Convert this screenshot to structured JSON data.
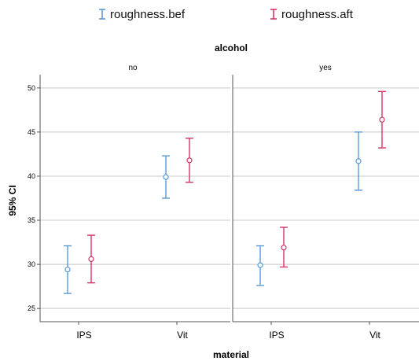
{
  "chart_data": {
    "type": "errorbar",
    "facet_title": "alcohol",
    "panels": [
      "no",
      "yes"
    ],
    "categories": [
      "IPS",
      "Vit"
    ],
    "xlabel": "material",
    "ylabel": "95% CI",
    "ylim": [
      23.5,
      51.5
    ],
    "yticks": [
      25,
      30,
      35,
      40,
      45,
      50
    ],
    "grid": true,
    "legend_position": "top",
    "series": [
      {
        "name": "roughness.bef",
        "color": "#5b9bd5",
        "points": [
          {
            "panel": "no",
            "category": "IPS",
            "mean": 29.4,
            "low": 26.7,
            "high": 32.1
          },
          {
            "panel": "no",
            "category": "Vit",
            "mean": 39.9,
            "low": 37.5,
            "high": 42.3
          },
          {
            "panel": "yes",
            "category": "IPS",
            "mean": 29.9,
            "low": 27.6,
            "high": 32.1
          },
          {
            "panel": "yes",
            "category": "Vit",
            "mean": 41.7,
            "low": 38.4,
            "high": 45.0
          }
        ]
      },
      {
        "name": "roughness.aft",
        "color": "#d6336c",
        "points": [
          {
            "panel": "no",
            "category": "IPS",
            "mean": 30.6,
            "low": 27.9,
            "high": 33.3
          },
          {
            "panel": "no",
            "category": "Vit",
            "mean": 41.8,
            "low": 39.3,
            "high": 44.3
          },
          {
            "panel": "yes",
            "category": "IPS",
            "mean": 31.9,
            "low": 29.7,
            "high": 34.2
          },
          {
            "panel": "yes",
            "category": "Vit",
            "mean": 46.4,
            "low": 43.2,
            "high": 49.6
          }
        ]
      }
    ]
  }
}
